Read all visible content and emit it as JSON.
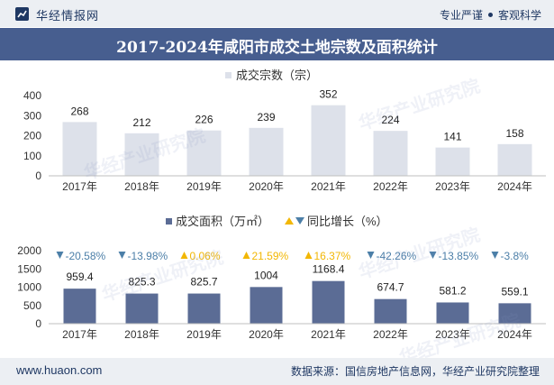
{
  "header": {
    "brand": "华经情报网",
    "slogan_left": "专业严谨",
    "slogan_right": "客观科学"
  },
  "title": "2017-2024年咸阳市成交土地宗数及面积统计",
  "watermark": "华经产业研究院",
  "footer": {
    "site": "www.huaon.com",
    "source": "数据来源：国信房地产信息网，华经产业研究院整理"
  },
  "colors": {
    "count_bar": "#dde1ea",
    "area_bar": "#5b6c95",
    "up": "#f2b705",
    "down": "#4c7fa8",
    "axis_text": "#333333",
    "title_bar": "#475e8f"
  },
  "chart_data": [
    {
      "type": "bar",
      "legend": "成交宗数（宗）",
      "categories": [
        "2017年",
        "2018年",
        "2019年",
        "2020年",
        "2021年",
        "2022年",
        "2023年",
        "2024年"
      ],
      "series": [
        {
          "name": "成交宗数（宗）",
          "values": [
            268,
            212,
            226,
            239,
            352,
            224,
            141,
            158
          ]
        }
      ],
      "ylim": [
        0,
        400
      ],
      "yticks": [
        0,
        100,
        200,
        300,
        400
      ],
      "grid": false,
      "legend_position": "top-center"
    },
    {
      "type": "bar",
      "legend": "成交面积（万㎡）",
      "legend2": "同比增长（%）",
      "categories": [
        "2017年",
        "2018年",
        "2019年",
        "2020年",
        "2021年",
        "2022年",
        "2023年",
        "2024年"
      ],
      "series": [
        {
          "name": "成交面积（万㎡）",
          "values": [
            959.4,
            825.3,
            825.7,
            1004,
            1168.4,
            674.7,
            581.2,
            559.1
          ]
        },
        {
          "name": "同比增长（%）",
          "values": [
            -20.58,
            -13.98,
            0.06,
            21.59,
            16.37,
            -42.26,
            -13.85,
            -3.8
          ]
        }
      ],
      "growth_labels": [
        "-20.58%",
        "-13.98%",
        "0.06%",
        "21.59%",
        "16.37%",
        "-42.26%",
        "-13.85%",
        "-3.8%"
      ],
      "ylim": [
        0,
        2000
      ],
      "yticks": [
        0,
        500,
        1000,
        1500,
        2000
      ],
      "grid": false,
      "legend_position": "top-center"
    }
  ]
}
